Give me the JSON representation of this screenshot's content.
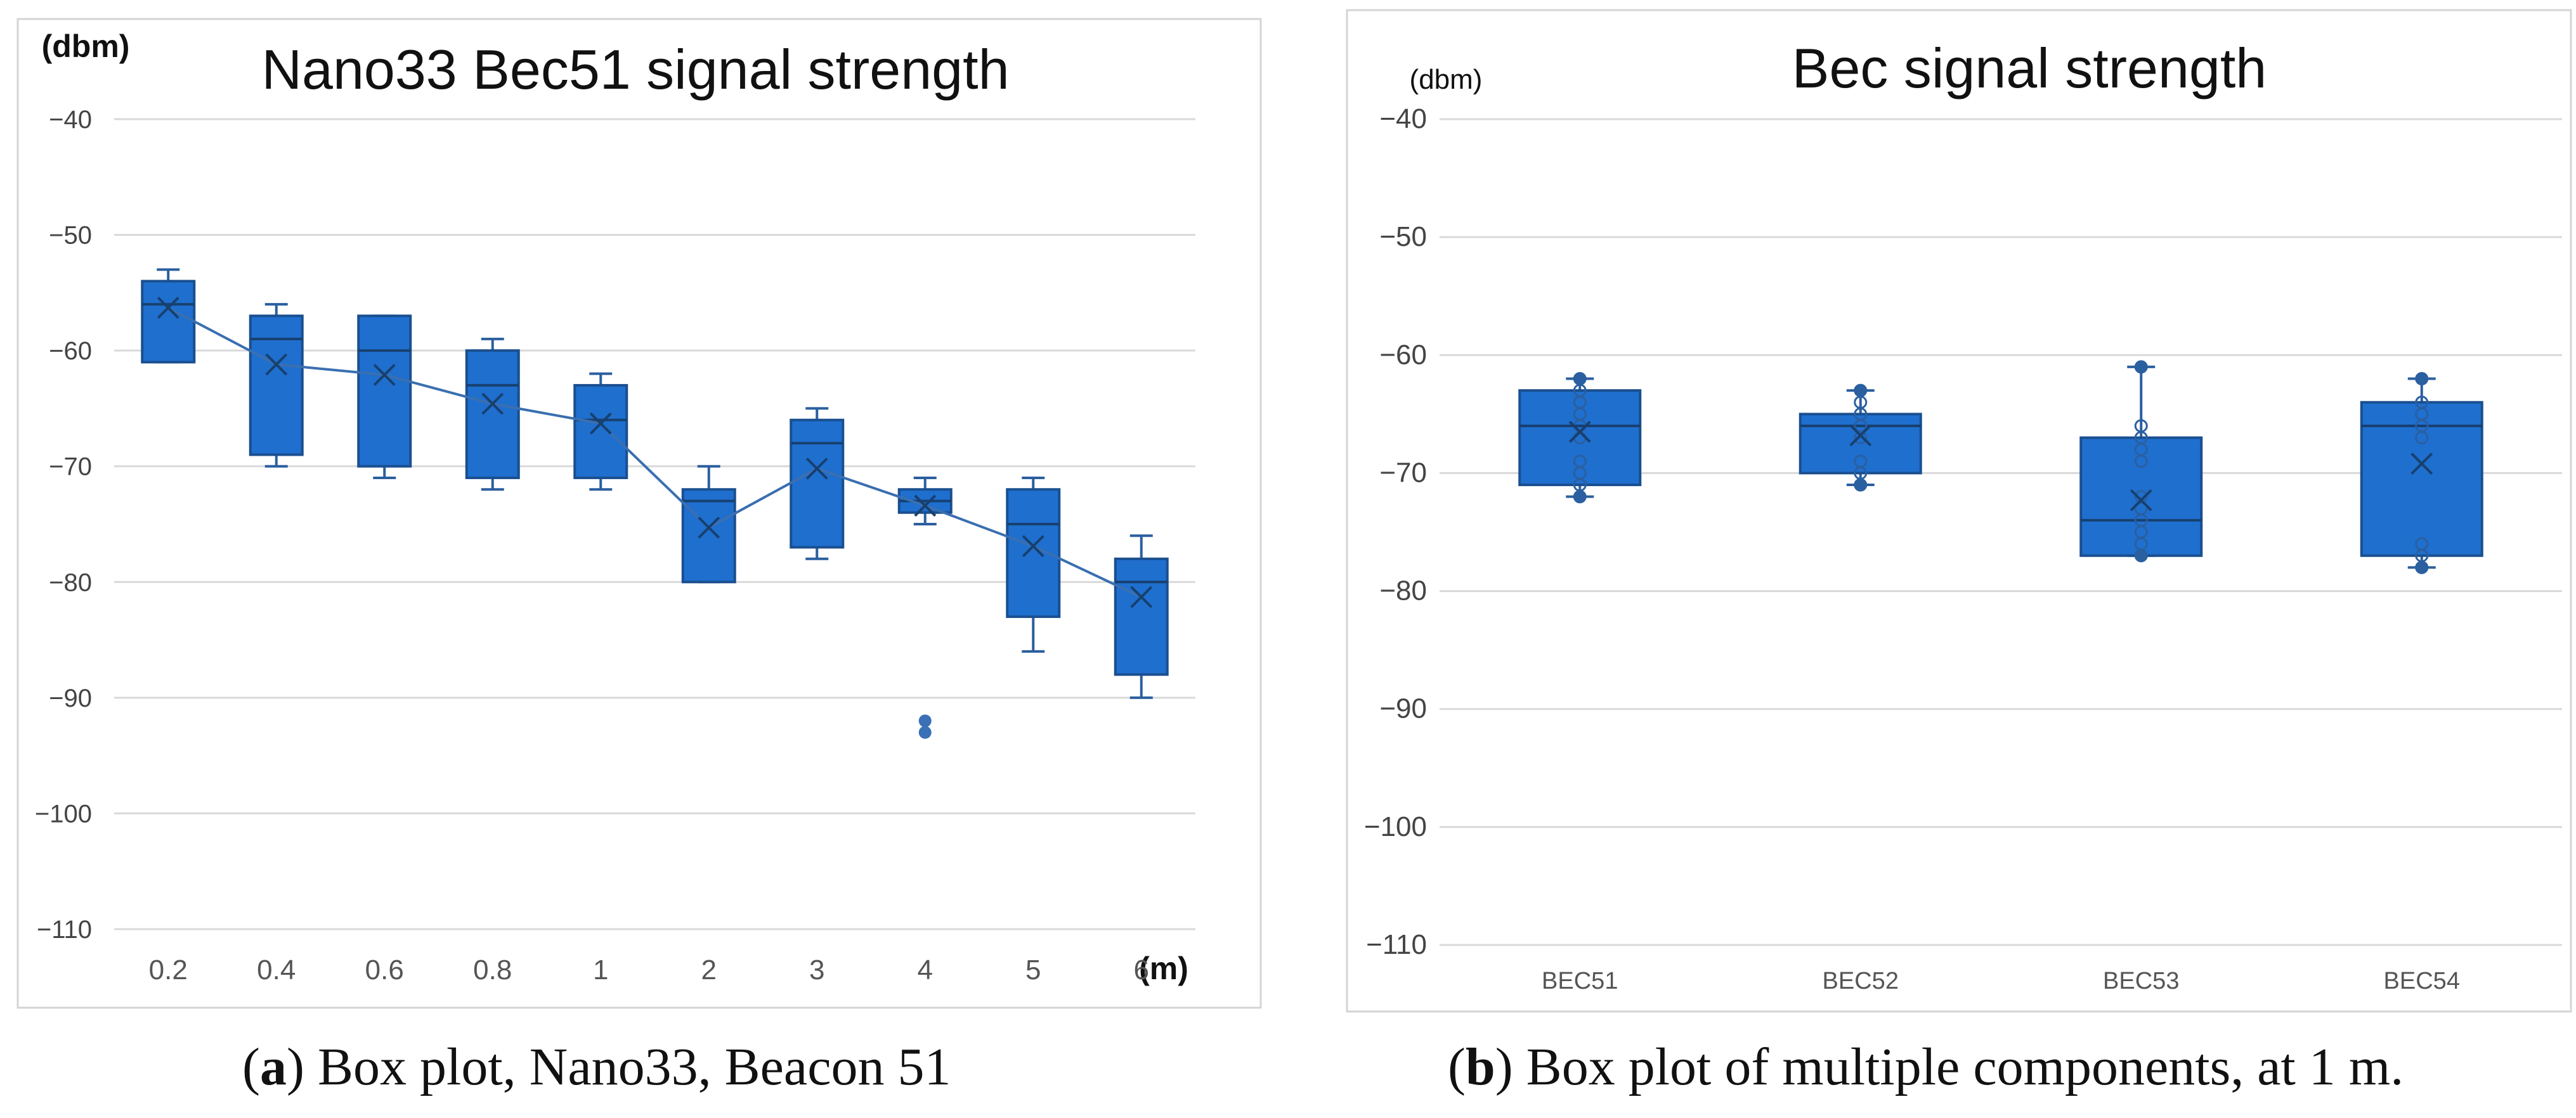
{
  "chart_data": [
    {
      "type": "box",
      "title": "Nano33 Bec51 signal strength",
      "ylabel": "(dbm)",
      "xlabel": "(m)",
      "ylim": [
        -110,
        -40
      ],
      "yticks": [
        -40,
        -50,
        -60,
        -70,
        -80,
        -90,
        -100,
        -110
      ],
      "ytick_labels": [
        "-40",
        "-50",
        "-60",
        "-70",
        "-80",
        "-90",
        "-100",
        "-110"
      ],
      "categories": [
        "0.2",
        "0.4",
        "0.6",
        "0.8",
        "1",
        "2",
        "3",
        "4",
        "5",
        "6"
      ],
      "boxes": [
        {
          "min": -61,
          "q1": -61,
          "median": -56,
          "q3": -54,
          "max": -53,
          "mean": -56.3
        },
        {
          "min": -70,
          "q1": -69,
          "median": -59,
          "q3": -57,
          "max": -56,
          "mean": -61.2
        },
        {
          "min": -71,
          "q1": -70,
          "median": -60,
          "q3": -57,
          "max": -57,
          "mean": -62.1
        },
        {
          "min": -72,
          "q1": -71,
          "median": -63,
          "q3": -60,
          "max": -59,
          "mean": -64.6
        },
        {
          "min": -72,
          "q1": -71,
          "median": -66,
          "q3": -63,
          "max": -62,
          "mean": -66.3
        },
        {
          "min": -80,
          "q1": -80,
          "median": -73,
          "q3": -72,
          "max": -70,
          "mean": -75.3
        },
        {
          "min": -78,
          "q1": -77,
          "median": -68,
          "q3": -66,
          "max": -65,
          "mean": -70.2
        },
        {
          "min": -75,
          "q1": -74,
          "median": -73,
          "q3": -72,
          "max": -71,
          "mean": -73.4,
          "outliers": [
            -92,
            -93
          ]
        },
        {
          "min": -86,
          "q1": -83,
          "median": -75,
          "q3": -72,
          "max": -71,
          "mean": -76.9
        },
        {
          "min": -90,
          "q1": -88,
          "median": -80,
          "q3": -78,
          "max": -76,
          "mean": -81.3
        }
      ],
      "mean_line": true,
      "color": "#1f6fcf",
      "caption_letter": "a",
      "caption_text": ") Box plot, Nano33, Beacon 51"
    },
    {
      "type": "box",
      "title": "Bec signal strength",
      "ylabel": "(dbm)",
      "ylim": [
        -110,
        -40
      ],
      "yticks": [
        -40,
        -50,
        -60,
        -70,
        -80,
        -90,
        -100,
        -110
      ],
      "ytick_labels": [
        "-40",
        "-50",
        "-60",
        "-70",
        "-80",
        "-90",
        "-100",
        "-110"
      ],
      "categories": [
        "BEC51",
        "BEC52",
        "BEC53",
        "BEC54"
      ],
      "boxes": [
        {
          "min": -72,
          "q1": -71,
          "median": -66,
          "q3": -63,
          "max": -62,
          "mean": -66.5,
          "points": [
            -62,
            -63,
            -64,
            -65,
            -66,
            -67,
            -69,
            -70,
            -71,
            -72
          ]
        },
        {
          "min": -71,
          "q1": -70,
          "median": -66,
          "q3": -65,
          "max": -63,
          "mean": -66.8,
          "points": [
            -63,
            -64,
            -65,
            -66,
            -67,
            -69,
            -70,
            -71
          ]
        },
        {
          "min": -77,
          "q1": -77,
          "median": -74,
          "q3": -67,
          "max": -61,
          "mean": -72.3,
          "points": [
            -61,
            -66,
            -67,
            -68,
            -69,
            -72,
            -73,
            -74,
            -75,
            -76,
            -77
          ]
        },
        {
          "min": -78,
          "q1": -77,
          "median": -66,
          "q3": -64,
          "max": -62,
          "mean": -69.2,
          "points": [
            -62,
            -64,
            -65,
            -66,
            -67,
            -76,
            -77,
            -78
          ]
        }
      ],
      "color": "#1f6fcf",
      "caption_letter": "b",
      "caption_text": ") Box plot of multiple components, at 1 m."
    }
  ]
}
